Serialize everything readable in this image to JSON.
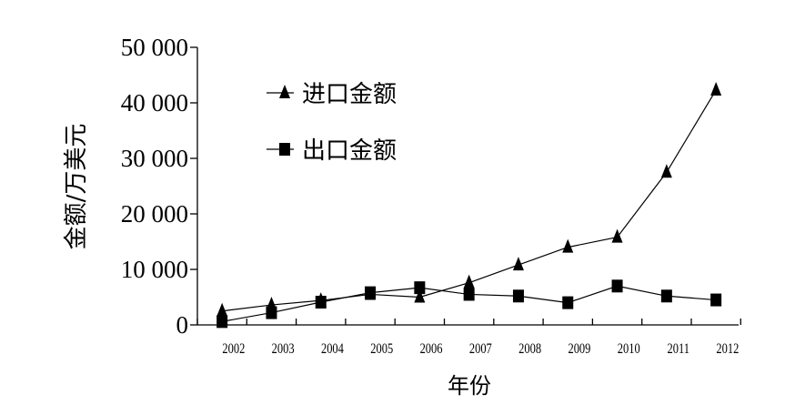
{
  "chart_data": {
    "type": "line",
    "title": "",
    "xlabel": "年份",
    "ylabel": "金额/万美元",
    "x_ticks": [
      "2002",
      "2003",
      "2004",
      "2005",
      "2006",
      "2007",
      "2008",
      "2009",
      "2010",
      "2011",
      "2012"
    ],
    "y_ticks": [
      "0",
      "10 000",
      "20 000",
      "30 000",
      "40 000",
      "50 000"
    ],
    "ylim": [
      0,
      50000
    ],
    "grid": false,
    "legend_position": "top-left",
    "series": [
      {
        "name": "进口金额",
        "marker": "triangle",
        "values": [
          2500,
          3600,
          4400,
          5500,
          5000,
          7600,
          10800,
          14000,
          15800,
          27500,
          42300
        ]
      },
      {
        "name": "出口金额",
        "marker": "square",
        "values": [
          600,
          2200,
          4100,
          5800,
          6700,
          5500,
          5200,
          4000,
          7000,
          5200,
          4500
        ]
      }
    ]
  }
}
